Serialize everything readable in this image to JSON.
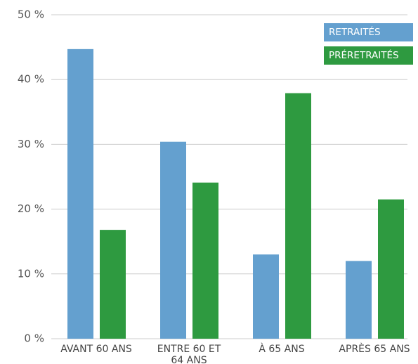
{
  "chart_data": {
    "type": "bar",
    "categories": [
      "AVANT 60 ANS",
      "ENTRE 60 ET 64 ANS",
      "À 65 ANS",
      "APRÈS 65 ANS"
    ],
    "series": [
      {
        "name": "RETRAITÉS",
        "color": "#64a0cf",
        "values": [
          44.7,
          30.4,
          13.0,
          12.0
        ]
      },
      {
        "name": "PRÉRETRAITÉS",
        "color": "#2e9a40",
        "values": [
          16.8,
          24.1,
          37.9,
          21.5
        ]
      }
    ],
    "ylim": [
      0,
      50
    ],
    "yticks": [
      {
        "value": 0,
        "label": "0 %"
      },
      {
        "value": 10,
        "label": "10 %"
      },
      {
        "value": 20,
        "label": "20 %"
      },
      {
        "value": 30,
        "label": "30 %"
      },
      {
        "value": 40,
        "label": "40 %"
      },
      {
        "value": 50,
        "label": "50 %"
      }
    ],
    "grid": true,
    "legend": "upper right"
  }
}
